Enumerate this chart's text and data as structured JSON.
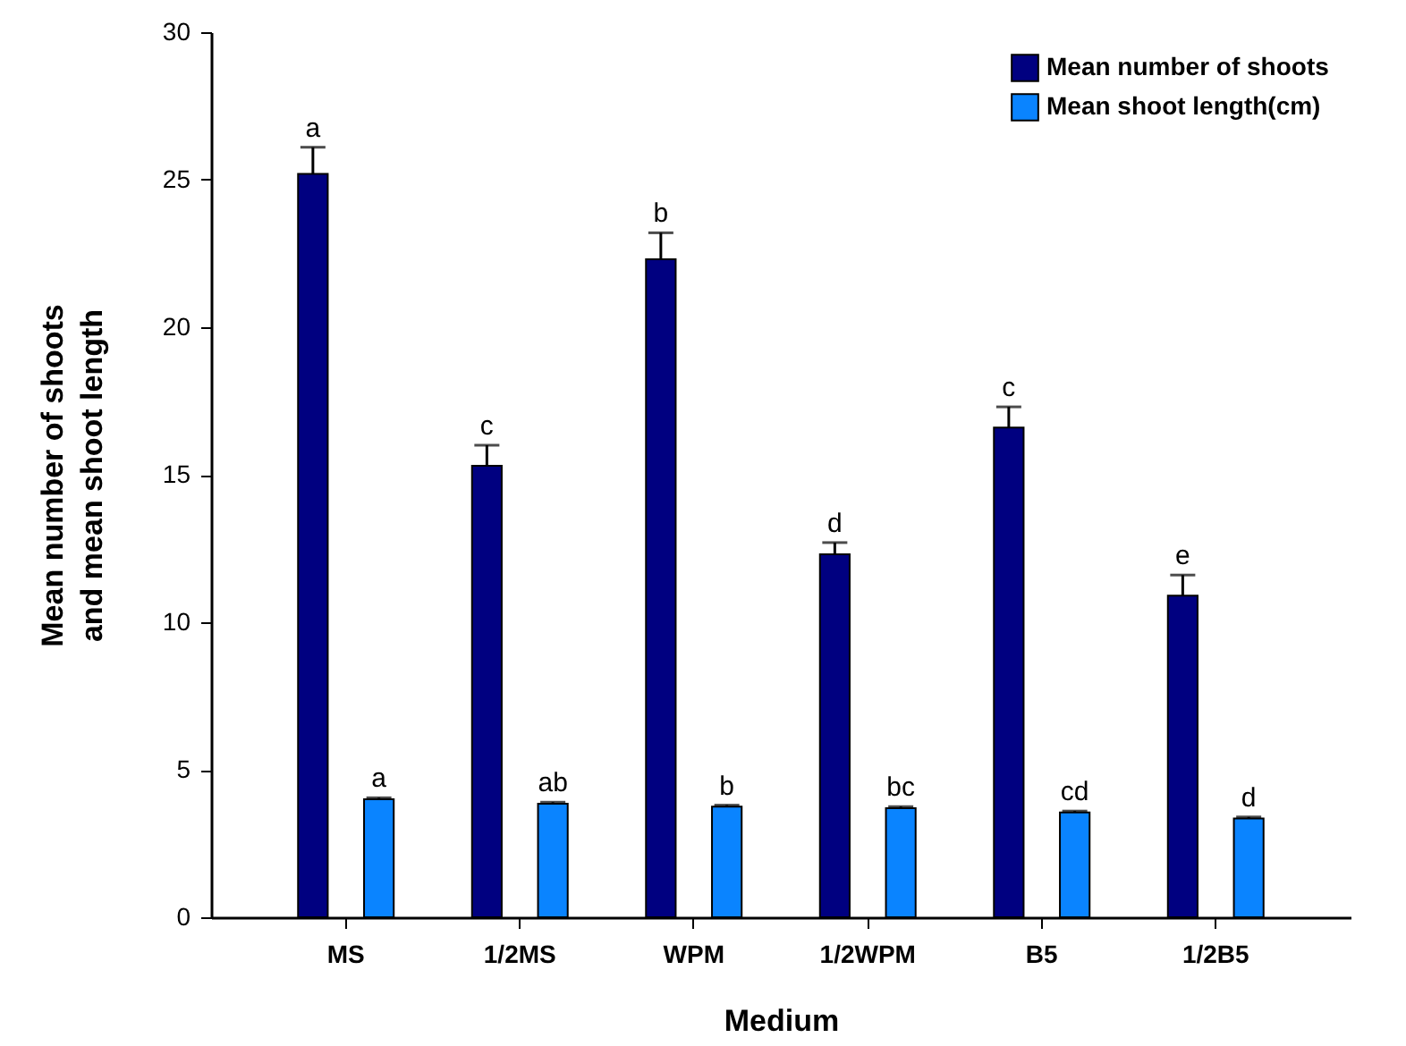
{
  "chart_data": {
    "type": "bar",
    "xlabel": "Medium",
    "ylabel": "Mean number of shoots\nand mean shoot length",
    "categories": [
      "MS",
      "1/2MS",
      "WPM",
      "1/2WPM",
      "B5",
      "1/2B5"
    ],
    "series": [
      {
        "name": "Mean number of shoots",
        "color": "#000080",
        "values": [
          25.2,
          15.3,
          22.3,
          12.3,
          16.6,
          10.9
        ],
        "errors": [
          [
            25.2,
            26.1
          ],
          [
            15.3,
            16.0
          ],
          [
            22.3,
            23.2
          ],
          [
            12.3,
            12.7
          ],
          [
            16.6,
            17.3
          ],
          [
            10.9,
            11.6
          ]
        ]
      },
      {
        "name": "Mean shoot length(cm)",
        "color": "#0a84ff",
        "values": [
          4.0,
          3.85,
          3.75,
          3.7,
          3.55,
          3.35
        ],
        "errors": [
          [
            4.0,
            4.05
          ],
          [
            3.85,
            3.9
          ],
          [
            3.75,
            3.8
          ],
          [
            3.7,
            3.75
          ],
          [
            3.55,
            3.6
          ],
          [
            3.35,
            3.4
          ]
        ]
      }
    ],
    "ylim": [
      0,
      30
    ],
    "yticks": [
      0,
      5,
      10,
      15,
      20,
      25,
      30
    ],
    "legend": "top right",
    "annotations": [
      "a",
      "c",
      "b",
      "d",
      "c",
      "e",
      "a",
      "ab",
      "b",
      "bc",
      "cd",
      "d"
    ]
  }
}
